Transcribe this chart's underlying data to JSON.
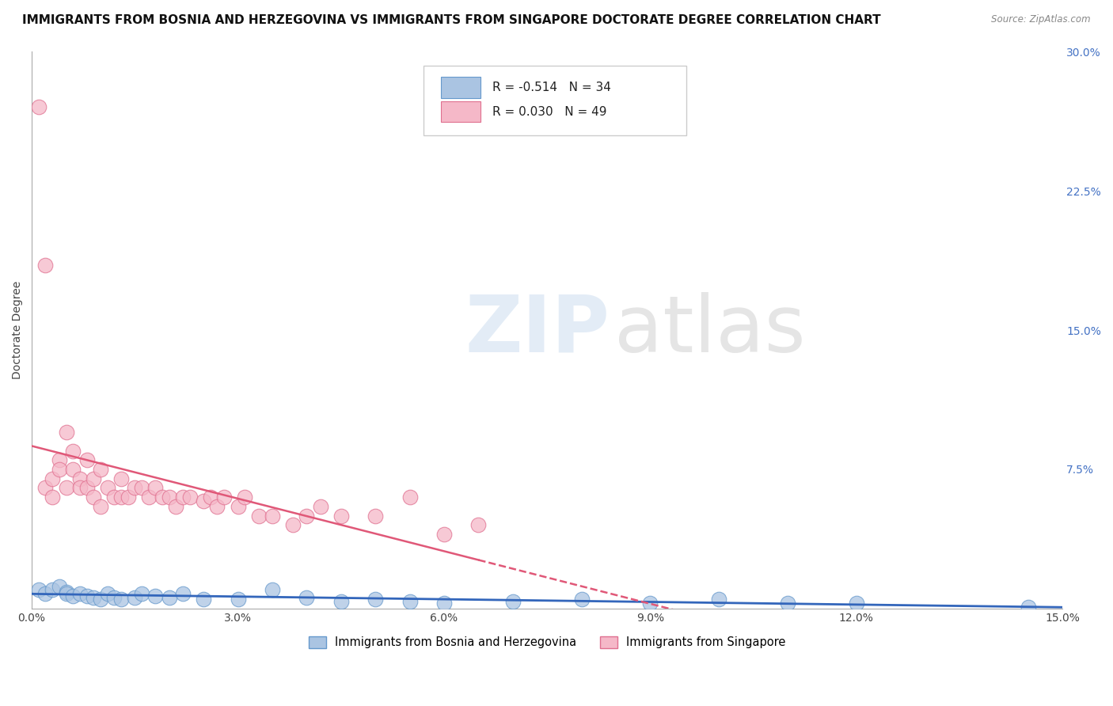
{
  "title": "IMMIGRANTS FROM BOSNIA AND HERZEGOVINA VS IMMIGRANTS FROM SINGAPORE DOCTORATE DEGREE CORRELATION CHART",
  "source": "Source: ZipAtlas.com",
  "ylabel": "Doctorate Degree",
  "xlim": [
    0.0,
    0.15
  ],
  "ylim": [
    0.0,
    0.3
  ],
  "xticks": [
    0.0,
    0.03,
    0.06,
    0.09,
    0.12,
    0.15
  ],
  "xtick_labels": [
    "0.0%",
    "3.0%",
    "6.0%",
    "9.0%",
    "12.0%",
    "15.0%"
  ],
  "yticks_right": [
    0.0,
    0.075,
    0.15,
    0.225,
    0.3
  ],
  "ytick_labels_right": [
    "",
    "7.5%",
    "15.0%",
    "22.5%",
    "30.0%"
  ],
  "bosnia_R": -0.514,
  "bosnia_N": 34,
  "singapore_R": 0.03,
  "singapore_N": 49,
  "bosnia_color": "#aac4e2",
  "bosnia_edge_color": "#6699cc",
  "singapore_color": "#f5b8c8",
  "singapore_edge_color": "#e07090",
  "bosnia_trend_color": "#3366bb",
  "singapore_trend_color": "#e05878",
  "background_color": "#ffffff",
  "grid_color": "#cccccc",
  "bosnia_x": [
    0.001,
    0.002,
    0.003,
    0.004,
    0.005,
    0.005,
    0.006,
    0.007,
    0.008,
    0.009,
    0.01,
    0.011,
    0.012,
    0.013,
    0.015,
    0.016,
    0.018,
    0.02,
    0.022,
    0.025,
    0.03,
    0.035,
    0.04,
    0.045,
    0.05,
    0.055,
    0.06,
    0.07,
    0.08,
    0.09,
    0.1,
    0.11,
    0.12,
    0.145
  ],
  "bosnia_y": [
    0.01,
    0.008,
    0.01,
    0.012,
    0.009,
    0.008,
    0.007,
    0.008,
    0.007,
    0.006,
    0.005,
    0.008,
    0.006,
    0.005,
    0.006,
    0.008,
    0.007,
    0.006,
    0.008,
    0.005,
    0.005,
    0.01,
    0.006,
    0.004,
    0.005,
    0.004,
    0.003,
    0.004,
    0.005,
    0.003,
    0.005,
    0.003,
    0.003,
    0.001
  ],
  "singapore_x": [
    0.001,
    0.002,
    0.002,
    0.003,
    0.003,
    0.004,
    0.004,
    0.005,
    0.005,
    0.006,
    0.006,
    0.007,
    0.007,
    0.008,
    0.008,
    0.009,
    0.009,
    0.01,
    0.01,
    0.011,
    0.012,
    0.013,
    0.013,
    0.014,
    0.015,
    0.016,
    0.017,
    0.018,
    0.019,
    0.02,
    0.021,
    0.022,
    0.023,
    0.025,
    0.026,
    0.027,
    0.028,
    0.03,
    0.031,
    0.033,
    0.035,
    0.038,
    0.04,
    0.042,
    0.045,
    0.05,
    0.055,
    0.06,
    0.065
  ],
  "singapore_y": [
    0.27,
    0.185,
    0.065,
    0.07,
    0.06,
    0.08,
    0.075,
    0.095,
    0.065,
    0.085,
    0.075,
    0.07,
    0.065,
    0.065,
    0.08,
    0.06,
    0.07,
    0.055,
    0.075,
    0.065,
    0.06,
    0.07,
    0.06,
    0.06,
    0.065,
    0.065,
    0.06,
    0.065,
    0.06,
    0.06,
    0.055,
    0.06,
    0.06,
    0.058,
    0.06,
    0.055,
    0.06,
    0.055,
    0.06,
    0.05,
    0.05,
    0.045,
    0.05,
    0.055,
    0.05,
    0.05,
    0.06,
    0.04,
    0.045
  ],
  "title_fontsize": 11,
  "axis_label_fontsize": 10,
  "tick_fontsize": 10
}
